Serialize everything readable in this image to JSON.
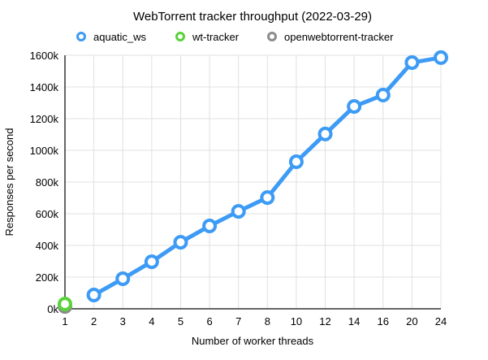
{
  "chart_data": {
    "type": "line",
    "title": "WebTorrent tracker throughput (2022-03-29)",
    "xlabel": "Number of worker threads",
    "ylabel": "Responses per second",
    "categories": [
      "1",
      "2",
      "3",
      "4",
      "5",
      "6",
      "7",
      "8",
      "10",
      "12",
      "14",
      "16",
      "20",
      "24"
    ],
    "ylim": [
      0,
      1600000
    ],
    "yticks": [
      0,
      200000,
      400000,
      600000,
      800000,
      1000000,
      1200000,
      1400000,
      1600000
    ],
    "ytick_labels": [
      "0k",
      "200k",
      "400k",
      "600k",
      "800k",
      "1000k",
      "1200k",
      "1400k",
      "1600k"
    ],
    "grid": true,
    "legend_position": "top",
    "series": [
      {
        "name": "aquatic_ws",
        "color": "#3d9bf5",
        "values": [
          null,
          87000,
          190000,
          297000,
          420000,
          523000,
          615000,
          702000,
          928000,
          1103000,
          1277000,
          1349000,
          1554000,
          1585000
        ]
      },
      {
        "name": "wt-tracker",
        "color": "#5ad23a",
        "values": [
          30000,
          null,
          null,
          null,
          null,
          null,
          null,
          null,
          null,
          null,
          null,
          null,
          null,
          null
        ]
      },
      {
        "name": "openwebtorrent-tracker",
        "color": "#8c8c8c",
        "values": [
          15000,
          null,
          null,
          null,
          null,
          null,
          null,
          null,
          null,
          null,
          null,
          null,
          null,
          null
        ]
      }
    ]
  }
}
